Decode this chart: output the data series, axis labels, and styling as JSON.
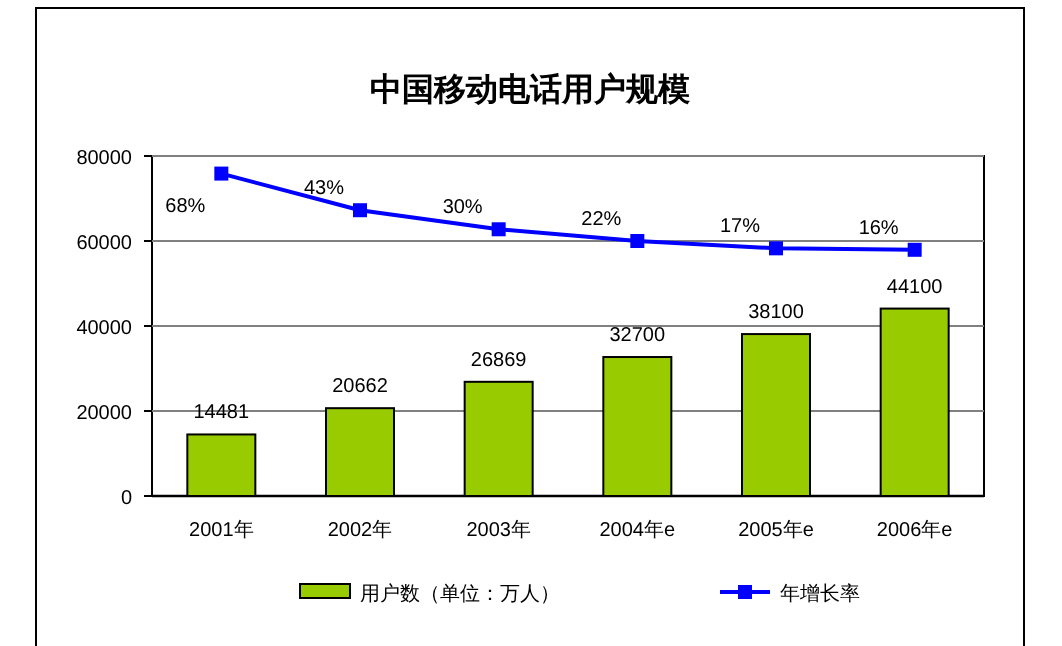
{
  "chart_data": {
    "type": "bar",
    "title": "中国移动电话用户规模",
    "categories": [
      "2001年",
      "2002年",
      "2003年",
      "2004年e",
      "2005年e",
      "2006年e"
    ],
    "series": [
      {
        "name": "用户数（单位：万人）",
        "color": "#99cc00",
        "values": [
          14481,
          20662,
          26869,
          32700,
          38100,
          44100
        ],
        "value_labels": [
          "14481",
          "20662",
          "26869",
          "32700",
          "38100",
          "44100"
        ]
      },
      {
        "name": "年增长率",
        "type": "line",
        "axis": "y2",
        "color": "#0000ff",
        "marker": "square",
        "values": [
          68,
          43,
          30,
          22,
          17,
          16
        ],
        "value_labels": [
          "68%",
          "43%",
          "30%",
          "22%",
          "17%",
          "16%"
        ]
      }
    ],
    "ylim": [
      0,
      80000
    ],
    "yticks": [
      0,
      20000,
      40000,
      60000,
      80000
    ],
    "y2lim": [
      -152,
      80
    ],
    "grid": "y",
    "legend": "bottom"
  }
}
